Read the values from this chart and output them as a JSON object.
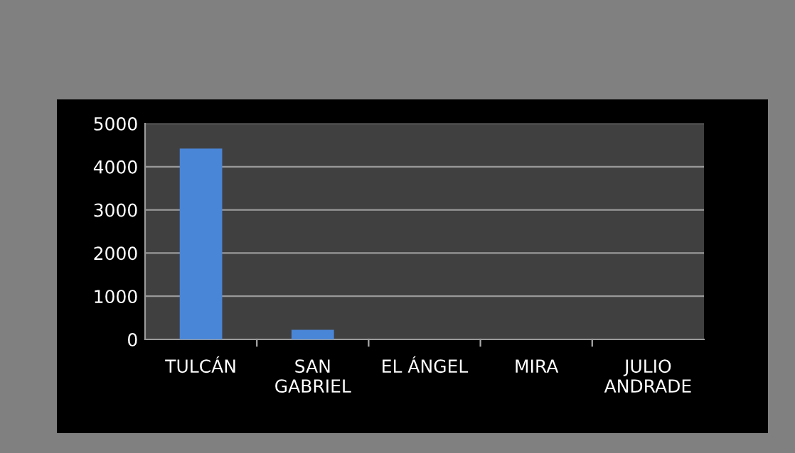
{
  "chart_data": {
    "type": "bar",
    "categories": [
      "TULCÁN",
      "SAN\nGABRIEL",
      "EL ÁNGEL",
      "MIRA",
      "JULIO\nANDRADE"
    ],
    "values": [
      4420,
      220,
      null,
      null,
      0
    ],
    "color": "#4a86d8",
    "ylim": [
      0,
      5000
    ],
    "yticks": [
      0,
      1000,
      2000,
      3000,
      4000,
      5000
    ],
    "grid": "y"
  }
}
